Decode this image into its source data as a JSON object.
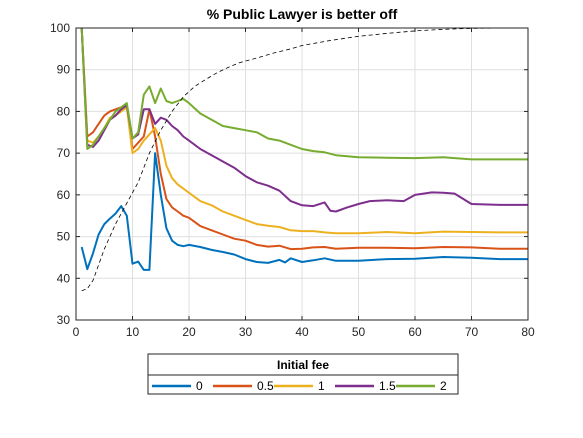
{
  "chart_data": {
    "type": "line",
    "title": "% Public Lawyer is better off",
    "xlabel": "",
    "ylabel": "",
    "xlim": [
      0,
      80
    ],
    "ylim": [
      30,
      100
    ],
    "x_ticks": [
      "0",
      "10",
      "20",
      "30",
      "40",
      "50",
      "60",
      "70",
      "80"
    ],
    "y_ticks": [
      "30",
      "40",
      "50",
      "60",
      "70",
      "80",
      "90",
      "100"
    ],
    "grid": true,
    "legend": {
      "title": "Initial fee",
      "placement": "bottom-outside",
      "orientation": "horizontal"
    },
    "series": [
      {
        "name": "0",
        "color": "#0072BD",
        "points": [
          [
            1,
            47.5
          ],
          [
            2,
            42.2
          ],
          [
            3,
            46
          ],
          [
            4,
            50.5
          ],
          [
            5,
            53
          ],
          [
            6,
            54.3
          ],
          [
            7,
            55.5
          ],
          [
            8,
            57.3
          ],
          [
            9,
            55
          ],
          [
            10,
            43.5
          ],
          [
            11,
            44
          ],
          [
            12,
            42
          ],
          [
            13,
            42
          ],
          [
            14,
            70
          ],
          [
            15,
            60
          ],
          [
            16,
            52
          ],
          [
            17,
            49
          ],
          [
            18,
            48
          ],
          [
            19,
            47.7
          ],
          [
            20,
            48
          ],
          [
            22,
            47.5
          ],
          [
            24,
            46.8
          ],
          [
            26,
            46.3
          ],
          [
            28,
            45.7
          ],
          [
            30,
            44.6
          ],
          [
            32,
            43.9
          ],
          [
            34,
            43.7
          ],
          [
            36,
            44.4
          ],
          [
            37,
            43.8
          ],
          [
            38,
            44.8
          ],
          [
            40,
            43.9
          ],
          [
            42,
            44.3
          ],
          [
            44,
            44.8
          ],
          [
            46,
            44.2
          ],
          [
            50,
            44.2
          ],
          [
            55,
            44.6
          ],
          [
            60,
            44.7
          ],
          [
            65,
            45.1
          ],
          [
            70,
            44.9
          ],
          [
            75,
            44.6
          ],
          [
            80,
            44.6
          ]
        ]
      },
      {
        "name": "0.5",
        "color": "#D95319",
        "points": [
          [
            1,
            100
          ],
          [
            2,
            74
          ],
          [
            3,
            75
          ],
          [
            4,
            77
          ],
          [
            5,
            79
          ],
          [
            6,
            80
          ],
          [
            7,
            80.5
          ],
          [
            8,
            81
          ],
          [
            9,
            81.5
          ],
          [
            10,
            71
          ],
          [
            11,
            72.5
          ],
          [
            12,
            74
          ],
          [
            13,
            80.5
          ],
          [
            14,
            74
          ],
          [
            15,
            65
          ],
          [
            16,
            59
          ],
          [
            17,
            57
          ],
          [
            18,
            56
          ],
          [
            19,
            55
          ],
          [
            20,
            54.5
          ],
          [
            22,
            52.5
          ],
          [
            24,
            51.5
          ],
          [
            26,
            50.5
          ],
          [
            28,
            49.5
          ],
          [
            30,
            49
          ],
          [
            32,
            48
          ],
          [
            34,
            47.6
          ],
          [
            36,
            47.8
          ],
          [
            38,
            47
          ],
          [
            40,
            47.1
          ],
          [
            42,
            47.4
          ],
          [
            44,
            47.5
          ],
          [
            46,
            47.1
          ],
          [
            50,
            47.3
          ],
          [
            55,
            47.3
          ],
          [
            60,
            47.2
          ],
          [
            65,
            47.5
          ],
          [
            70,
            47.4
          ],
          [
            75,
            47.1
          ],
          [
            80,
            47.1
          ]
        ]
      },
      {
        "name": "1",
        "color": "#EDB120",
        "points": [
          [
            1,
            100
          ],
          [
            2,
            73
          ],
          [
            3,
            72.5
          ],
          [
            4,
            74
          ],
          [
            5,
            76
          ],
          [
            6,
            78.5
          ],
          [
            7,
            79
          ],
          [
            8,
            80
          ],
          [
            9,
            81
          ],
          [
            10,
            70
          ],
          [
            11,
            71
          ],
          [
            12,
            73
          ],
          [
            13,
            74.5
          ],
          [
            14,
            76
          ],
          [
            15,
            73
          ],
          [
            16,
            67
          ],
          [
            17,
            64
          ],
          [
            18,
            62.5
          ],
          [
            19,
            61.5
          ],
          [
            20,
            60.5
          ],
          [
            22,
            58.5
          ],
          [
            24,
            57.5
          ],
          [
            26,
            56
          ],
          [
            28,
            55
          ],
          [
            30,
            54
          ],
          [
            32,
            53
          ],
          [
            34,
            52.6
          ],
          [
            36,
            52.3
          ],
          [
            38,
            51.5
          ],
          [
            40,
            51.3
          ],
          [
            42,
            51.3
          ],
          [
            44,
            51
          ],
          [
            46,
            50.8
          ],
          [
            50,
            50.8
          ],
          [
            55,
            51.1
          ],
          [
            60,
            50.8
          ],
          [
            65,
            51.2
          ],
          [
            70,
            51.1
          ],
          [
            75,
            51
          ],
          [
            80,
            51
          ]
        ]
      },
      {
        "name": "1.5",
        "color": "#7E2F8E",
        "points": [
          [
            1,
            100
          ],
          [
            2,
            72
          ],
          [
            3,
            71.5
          ],
          [
            4,
            73
          ],
          [
            5,
            75.5
          ],
          [
            6,
            78
          ],
          [
            7,
            79
          ],
          [
            8,
            80.5
          ],
          [
            9,
            81.5
          ],
          [
            10,
            73.5
          ],
          [
            11,
            74.5
          ],
          [
            12,
            80.5
          ],
          [
            13,
            80.5
          ],
          [
            14,
            77
          ],
          [
            15,
            78.5
          ],
          [
            16,
            78
          ],
          [
            17,
            76.5
          ],
          [
            18,
            75.5
          ],
          [
            19,
            74
          ],
          [
            20,
            73
          ],
          [
            22,
            71
          ],
          [
            24,
            69.5
          ],
          [
            26,
            68
          ],
          [
            28,
            66.5
          ],
          [
            30,
            64.5
          ],
          [
            32,
            63
          ],
          [
            34,
            62.2
          ],
          [
            36,
            61
          ],
          [
            38,
            58.5
          ],
          [
            40,
            57.5
          ],
          [
            42,
            57.3
          ],
          [
            44,
            58.2
          ],
          [
            45,
            56.2
          ],
          [
            46,
            56
          ],
          [
            48,
            57
          ],
          [
            50,
            57.8
          ],
          [
            52,
            58.5
          ],
          [
            55,
            58.7
          ],
          [
            58,
            58.5
          ],
          [
            60,
            60
          ],
          [
            63,
            60.6
          ],
          [
            65,
            60.5
          ],
          [
            67,
            60.3
          ],
          [
            70,
            57.8
          ],
          [
            75,
            57.6
          ],
          [
            80,
            57.6
          ]
        ]
      },
      {
        "name": "2",
        "color": "#77AC30",
        "points": [
          [
            1,
            100
          ],
          [
            2,
            71
          ],
          [
            3,
            72
          ],
          [
            4,
            74
          ],
          [
            5,
            76
          ],
          [
            6,
            78
          ],
          [
            7,
            80
          ],
          [
            8,
            81
          ],
          [
            9,
            82
          ],
          [
            10,
            73.5
          ],
          [
            11,
            75
          ],
          [
            12,
            84
          ],
          [
            13,
            86
          ],
          [
            14,
            82
          ],
          [
            15,
            85.5
          ],
          [
            16,
            82.5
          ],
          [
            17,
            82
          ],
          [
            18,
            82.5
          ],
          [
            19,
            83
          ],
          [
            20,
            82
          ],
          [
            22,
            79.5
          ],
          [
            24,
            78
          ],
          [
            26,
            76.5
          ],
          [
            28,
            76
          ],
          [
            30,
            75.5
          ],
          [
            32,
            75
          ],
          [
            34,
            73.5
          ],
          [
            36,
            73
          ],
          [
            38,
            72
          ],
          [
            40,
            71
          ],
          [
            42,
            70.5
          ],
          [
            44,
            70.2
          ],
          [
            46,
            69.5
          ],
          [
            50,
            69
          ],
          [
            55,
            68.9
          ],
          [
            60,
            68.8
          ],
          [
            65,
            69
          ],
          [
            70,
            68.5
          ],
          [
            75,
            68.5
          ],
          [
            80,
            68.5
          ]
        ]
      },
      {
        "name": "",
        "color": "#000000",
        "dashed": true,
        "points": [
          [
            1,
            37
          ],
          [
            2,
            37.5
          ],
          [
            3,
            39.5
          ],
          [
            5,
            47
          ],
          [
            7,
            53
          ],
          [
            9,
            58
          ],
          [
            11,
            63
          ],
          [
            13,
            70
          ],
          [
            15,
            75.5
          ],
          [
            17,
            80
          ],
          [
            19,
            83.5
          ],
          [
            21,
            86
          ],
          [
            23,
            87.7
          ],
          [
            25,
            89.3
          ],
          [
            27,
            90.6
          ],
          [
            29,
            91.7
          ],
          [
            32,
            92.8
          ],
          [
            35,
            94
          ],
          [
            38,
            95
          ],
          [
            40,
            95.8
          ],
          [
            45,
            97
          ],
          [
            50,
            98
          ],
          [
            55,
            98.7
          ],
          [
            60,
            99.3
          ],
          [
            65,
            99.7
          ],
          [
            70,
            99.9
          ],
          [
            75,
            100
          ],
          [
            80,
            100
          ]
        ]
      }
    ]
  }
}
